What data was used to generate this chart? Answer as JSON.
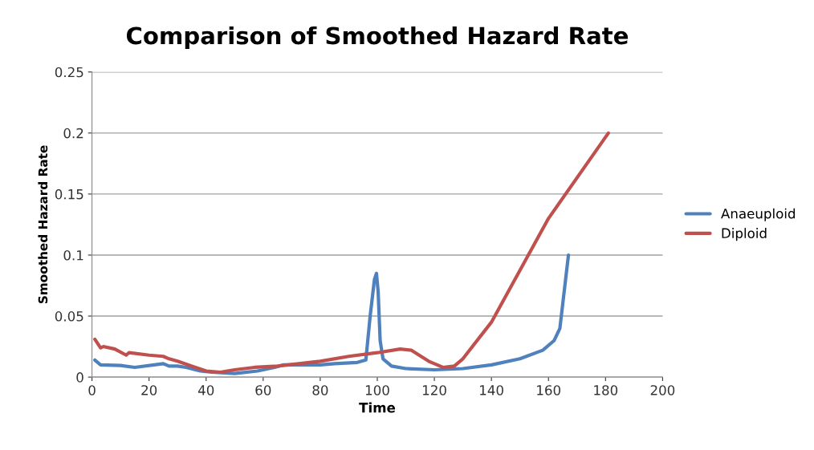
{
  "chart_data": {
    "type": "line",
    "title": "Comparison of Smoothed Hazard Rate",
    "xlabel": "Time",
    "ylabel": "Smoothed Hazard Rate",
    "xlim": [
      0,
      200
    ],
    "xticks": [
      0,
      20,
      40,
      60,
      80,
      100,
      120,
      140,
      160,
      180,
      200
    ],
    "ylim": [
      0,
      0.25
    ],
    "yticks": [
      0,
      0.05,
      0.1,
      0.15,
      0.2,
      0.25
    ],
    "grid": "y",
    "legend": "right",
    "marker": "none",
    "line_style": "solid",
    "series": [
      {
        "name": "Anaeuploid",
        "color": "#4f81bd",
        "x": [
          1,
          3,
          10,
          15,
          25,
          27,
          30,
          33,
          38,
          42,
          50,
          58,
          64,
          67,
          72,
          80,
          85,
          93,
          96,
          97.5,
          99,
          99.7,
          100.3,
          101,
          102,
          105,
          110,
          120,
          130,
          140,
          150,
          158,
          162,
          164,
          165,
          166,
          167
        ],
        "values": [
          0.014,
          0.01,
          0.0095,
          0.008,
          0.011,
          0.009,
          0.009,
          0.008,
          0.005,
          0.004,
          0.003,
          0.005,
          0.008,
          0.01,
          0.01,
          0.01,
          0.011,
          0.012,
          0.014,
          0.05,
          0.08,
          0.085,
          0.07,
          0.03,
          0.015,
          0.009,
          0.007,
          0.006,
          0.007,
          0.01,
          0.015,
          0.022,
          0.03,
          0.04,
          0.06,
          0.08,
          0.1
        ]
      },
      {
        "name": "Diploid",
        "color": "#c0504d",
        "x": [
          1,
          3,
          4,
          8,
          12,
          13,
          20,
          25,
          27,
          30,
          35,
          40,
          45,
          50,
          57,
          65,
          80,
          90,
          100,
          108,
          112,
          118,
          123,
          127,
          130,
          140,
          160,
          181
        ],
        "values": [
          0.031,
          0.024,
          0.025,
          0.023,
          0.018,
          0.02,
          0.018,
          0.017,
          0.015,
          0.013,
          0.009,
          0.005,
          0.004,
          0.006,
          0.008,
          0.009,
          0.013,
          0.017,
          0.02,
          0.023,
          0.022,
          0.013,
          0.008,
          0.009,
          0.015,
          0.045,
          0.13,
          0.2
        ]
      }
    ]
  }
}
